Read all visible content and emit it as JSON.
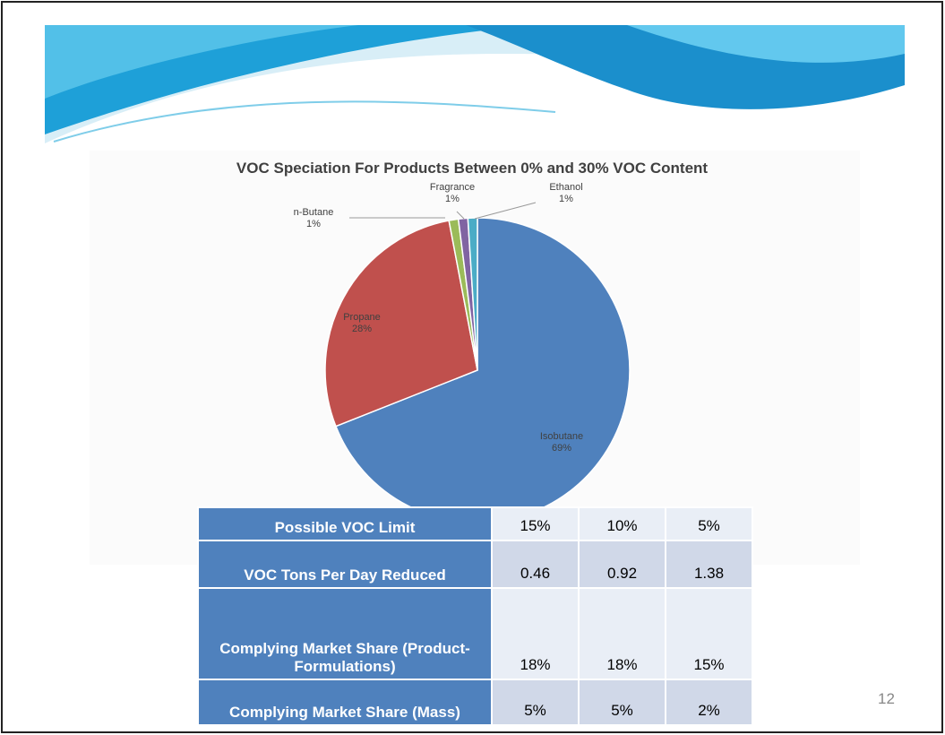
{
  "chart_data": {
    "type": "pie",
    "title": "VOC Speciation For Products Between 0% and 30% VOC Content",
    "categories": [
      "Isobutane",
      "Propane",
      "n-Butane",
      "Fragrance",
      "Ethanol"
    ],
    "values": [
      69,
      28,
      1,
      1,
      1
    ],
    "value_labels": [
      "69%",
      "28%",
      "1%",
      "1%",
      "1%"
    ],
    "colors": [
      "#4f81bd",
      "#c0504d",
      "#9bbb59",
      "#8064a2",
      "#4bacc6"
    ]
  },
  "table": {
    "rows": [
      [
        "Possible VOC Limit",
        "15%",
        "10%",
        "5%"
      ],
      [
        "VOC Tons Per Day Reduced",
        "0.46",
        "0.92",
        "1.38"
      ],
      [
        "Complying Market Share (Product-Formulations)",
        "18%",
        "18%",
        "15%"
      ],
      [
        "Complying Market Share (Mass)",
        "5%",
        "5%",
        "2%"
      ]
    ]
  },
  "page_number": "12"
}
